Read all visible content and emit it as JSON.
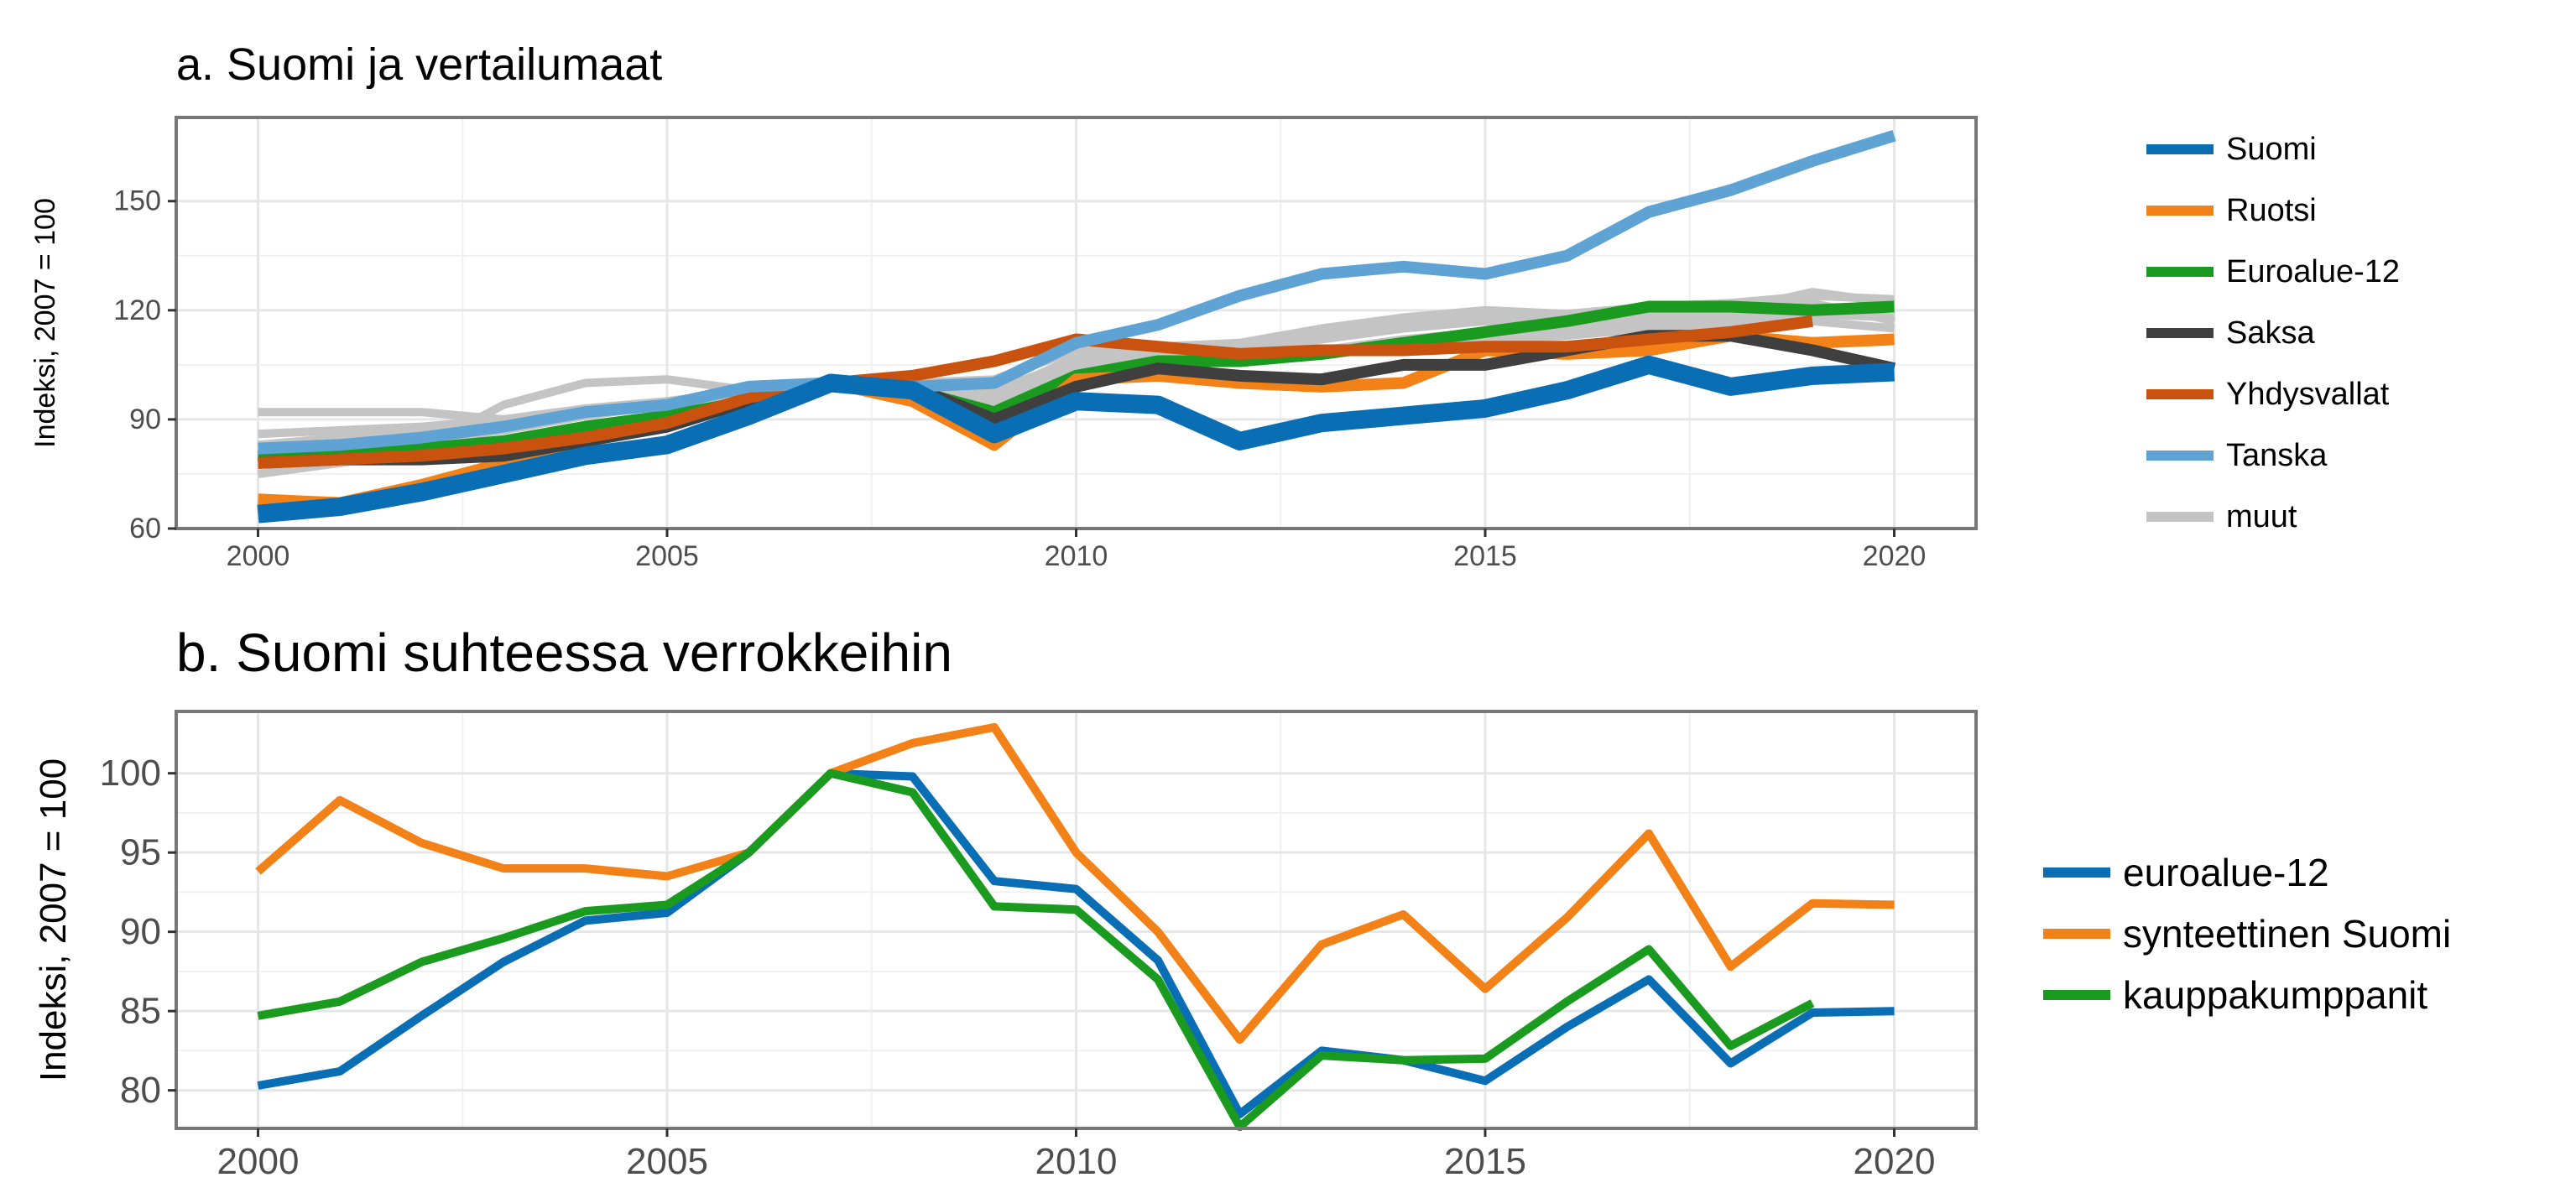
{
  "colors": {
    "blue": "#0a6eb4",
    "orange": "#f28118",
    "green": "#1a9a1e",
    "darkgray": "#3f3f3f",
    "rust": "#c9520f",
    "lightblue": "#5fa2d4",
    "lightgray": "#c4c4c4",
    "grid": "#e6e6e6",
    "panel_border": "#777777",
    "axis_text": "#4d4d4d"
  },
  "chart_data": [
    {
      "type": "line",
      "title": "a. Suomi ja vertailumaat",
      "xlabel": "",
      "ylabel": "Indeksi, 2007 = 100",
      "xlim": [
        1999.0,
        2021.0
      ],
      "ylim": [
        60,
        173
      ],
      "x_ticks": [
        2000,
        2005,
        2010,
        2015,
        2020
      ],
      "y_ticks": [
        60,
        90,
        120,
        150
      ],
      "grid": true,
      "legend_position": "right",
      "legend": [
        "Suomi",
        "Ruotsi",
        "Euroalue-12",
        "Saksa",
        "Yhdysvallat",
        "Tanska",
        "muut"
      ],
      "background_series": [
        {
          "x": [
            2000,
            2001,
            2002,
            2003,
            2004,
            2005,
            2006,
            2007,
            2008,
            2009,
            2010,
            2011,
            2012,
            2013,
            2014,
            2015,
            2016,
            2017,
            2018,
            2019,
            2020
          ],
          "values": [
            92,
            92,
            92,
            90,
            92,
            94,
            98,
            100,
            100,
            101,
            109,
            108,
            107,
            112,
            115,
            117,
            116,
            118,
            120,
            125,
            122
          ]
        },
        {
          "x": [
            2000,
            2001,
            2002,
            2003,
            2004,
            2005,
            2006,
            2007,
            2008,
            2009,
            2010,
            2011,
            2012,
            2013,
            2014,
            2015,
            2016,
            2017,
            2018,
            2019,
            2020
          ],
          "values": [
            75,
            78,
            82,
            94,
            100,
            101,
            98,
            100,
            98,
            97,
            107,
            110,
            111,
            115,
            118,
            120,
            119,
            121,
            122,
            124,
            123
          ]
        },
        {
          "x": [
            2000,
            2001,
            2002,
            2003,
            2004,
            2005,
            2006,
            2007,
            2008,
            2009,
            2010,
            2011,
            2012,
            2013,
            2014,
            2015,
            2016,
            2017,
            2018,
            2019,
            2020
          ],
          "values": [
            80,
            82,
            84,
            87,
            91,
            94,
            97,
            100,
            99,
            96,
            104,
            107,
            108,
            109,
            112,
            114,
            115,
            117,
            118,
            119,
            118
          ]
        },
        {
          "x": [
            2000,
            2001,
            2002,
            2003,
            2004,
            2005,
            2006,
            2007,
            2008,
            2009,
            2010,
            2011,
            2012,
            2013,
            2014,
            2015,
            2016,
            2017,
            2018,
            2019,
            2020
          ],
          "values": [
            83,
            85,
            87,
            89,
            92,
            95,
            97,
            100,
            101,
            98,
            106,
            108,
            109,
            113,
            116,
            118,
            117,
            119,
            121,
            122,
            117
          ]
        },
        {
          "x": [
            2000,
            2001,
            2002,
            2003,
            2004,
            2005,
            2006,
            2007,
            2008,
            2009,
            2010,
            2011,
            2012,
            2013,
            2014,
            2015,
            2016,
            2017,
            2018,
            2019,
            2020
          ],
          "values": [
            86,
            87,
            88,
            90,
            93,
            95,
            98,
            100,
            99,
            95,
            102,
            105,
            107,
            108,
            110,
            112,
            113,
            115,
            116,
            117,
            115
          ]
        }
      ],
      "background_label": "muut",
      "series": [
        {
          "name": "Euroalue-12",
          "color_key": "green",
          "x": [
            2000,
            2001,
            2002,
            2003,
            2004,
            2005,
            2006,
            2007,
            2008,
            2009,
            2010,
            2011,
            2012,
            2013,
            2014,
            2015,
            2016,
            2017,
            2018,
            2019,
            2020
          ],
          "values": [
            80,
            81,
            82,
            84,
            88,
            91,
            95,
            100,
            98,
            92,
            102,
            106,
            106,
            108,
            111,
            114,
            117,
            121,
            121,
            120,
            121
          ]
        },
        {
          "name": "Ruotsi",
          "color_key": "orange",
          "x": [
            2000,
            2001,
            2002,
            2003,
            2004,
            2005,
            2006,
            2007,
            2008,
            2009,
            2010,
            2011,
            2012,
            2013,
            2014,
            2015,
            2016,
            2017,
            2018,
            2019,
            2020
          ],
          "values": [
            68,
            67,
            72,
            78,
            84,
            89,
            95,
            100,
            95,
            83,
            101,
            102,
            100,
            99,
            100,
            109,
            108,
            109,
            113,
            111,
            112
          ]
        },
        {
          "name": "Saksa",
          "color_key": "darkgray",
          "x": [
            2000,
            2001,
            2002,
            2003,
            2004,
            2005,
            2006,
            2007,
            2008,
            2009,
            2010,
            2011,
            2012,
            2013,
            2014,
            2015,
            2016,
            2017,
            2018,
            2019,
            2020
          ],
          "values": [
            78,
            79,
            79,
            80,
            84,
            88,
            95,
            100,
            99,
            90,
            99,
            104,
            102,
            101,
            105,
            105,
            109,
            113,
            113,
            109,
            104
          ]
        },
        {
          "name": "Yhdysvallat",
          "color_key": "rust",
          "x": [
            2000,
            2001,
            2002,
            2003,
            2004,
            2005,
            2006,
            2007,
            2008,
            2009,
            2010,
            2011,
            2012,
            2013,
            2014,
            2015,
            2016,
            2017,
            2018,
            2019
          ],
          "values": [
            78,
            79,
            80,
            82,
            85,
            89,
            96,
            100,
            102,
            106,
            112,
            110,
            108,
            109,
            109,
            110,
            110,
            112,
            114,
            117
          ]
        },
        {
          "name": "Tanska",
          "color_key": "lightblue",
          "x": [
            2000,
            2001,
            2002,
            2003,
            2004,
            2005,
            2006,
            2007,
            2008,
            2009,
            2010,
            2011,
            2012,
            2013,
            2014,
            2015,
            2016,
            2017,
            2018,
            2019,
            2020
          ],
          "values": [
            82,
            83,
            85,
            88,
            92,
            94,
            99,
            100,
            99,
            100,
            111,
            116,
            124,
            130,
            132,
            130,
            135,
            147,
            153,
            161,
            168
          ]
        },
        {
          "name": "Suomi",
          "color_key": "blue",
          "x": [
            2000,
            2001,
            2002,
            2003,
            2004,
            2005,
            2006,
            2007,
            2008,
            2009,
            2010,
            2011,
            2012,
            2013,
            2014,
            2015,
            2016,
            2017,
            2018,
            2019,
            2020
          ],
          "values": [
            64,
            66,
            70,
            75,
            80,
            83,
            91,
            100,
            98,
            86,
            95,
            94,
            84,
            89,
            91,
            93,
            98,
            105,
            99,
            102,
            103
          ]
        }
      ]
    },
    {
      "type": "line",
      "title": "b. Suomi suhteessa verrokkeihin",
      "xlabel": "",
      "ylabel": "Indeksi, 2007 = 100",
      "xlim": [
        1999.0,
        2021.0
      ],
      "ylim": [
        77.6,
        103.9
      ],
      "x_ticks": [
        2000,
        2005,
        2010,
        2015,
        2020
      ],
      "y_ticks": [
        80,
        85,
        90,
        95,
        100
      ],
      "grid": true,
      "legend_position": "right",
      "series": [
        {
          "name": "euroalue-12",
          "color_key": "blue",
          "x": [
            2000,
            2001,
            2002,
            2003,
            2004,
            2005,
            2006,
            2007,
            2008,
            2009,
            2010,
            2011,
            2012,
            2013,
            2014,
            2015,
            2016,
            2017,
            2018,
            2019,
            2020
          ],
          "values": [
            80.3,
            81.2,
            84.7,
            88.1,
            90.7,
            91.2,
            95.0,
            100.0,
            99.8,
            93.2,
            92.7,
            88.2,
            78.5,
            82.5,
            81.9,
            80.6,
            84.0,
            87.0,
            81.7,
            84.9,
            85.0
          ]
        },
        {
          "name": "synteettinen Suomi",
          "color_key": "orange",
          "x": [
            2000,
            2001,
            2002,
            2003,
            2004,
            2005,
            2006,
            2007,
            2008,
            2009,
            2010,
            2011,
            2012,
            2013,
            2014,
            2015,
            2016,
            2017,
            2018,
            2019,
            2020
          ],
          "values": [
            93.8,
            98.3,
            95.6,
            94.0,
            94.0,
            93.5,
            95.0,
            100.0,
            101.9,
            102.9,
            95.0,
            90.0,
            83.2,
            89.2,
            91.1,
            86.4,
            90.9,
            96.2,
            87.8,
            91.8,
            91.7
          ]
        },
        {
          "name": "kauppakumppanit",
          "color_key": "green",
          "x": [
            2000,
            2001,
            2002,
            2003,
            2004,
            2005,
            2006,
            2007,
            2008,
            2009,
            2010,
            2011,
            2012,
            2013,
            2014,
            2015,
            2016,
            2017,
            2018,
            2019
          ],
          "values": [
            84.7,
            85.6,
            88.1,
            89.6,
            91.3,
            91.7,
            95.0,
            100.0,
            98.8,
            91.6,
            91.4,
            87.0,
            77.7,
            82.2,
            81.9,
            82.0,
            85.6,
            88.9,
            82.8,
            85.5
          ]
        }
      ]
    }
  ]
}
